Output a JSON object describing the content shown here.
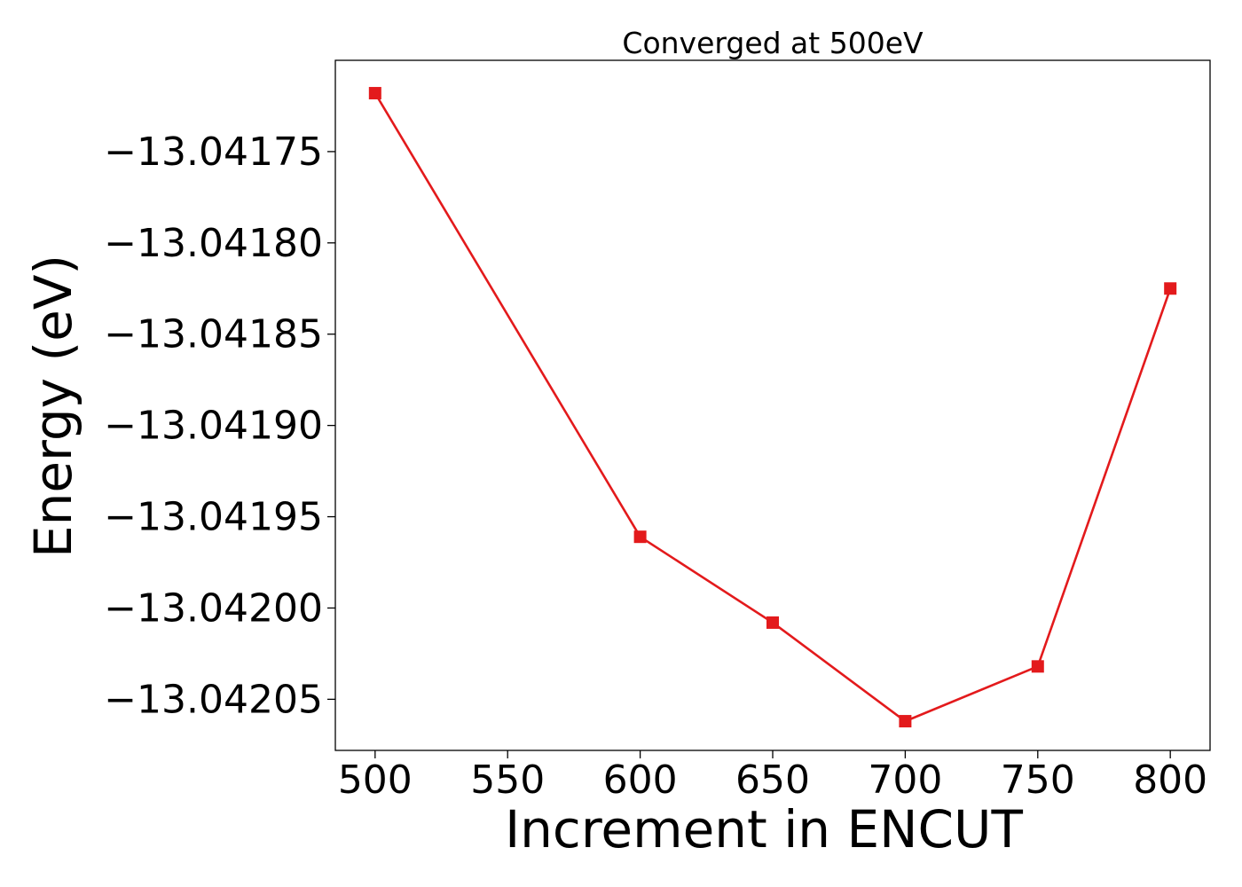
{
  "chart_data": {
    "type": "line",
    "title": "Converged at 500eV",
    "xlabel": "Increment in ENCUT",
    "ylabel": "Energy (eV)",
    "x": [
      500,
      600,
      650,
      700,
      750,
      800
    ],
    "series": [
      {
        "values": [
          -13.041718,
          -13.041961,
          -13.042008,
          -13.042062,
          -13.042032,
          -13.041825
        ],
        "color": "#e31a1c",
        "marker": "square"
      }
    ],
    "xlim": [
      485,
      815
    ],
    "ylim": [
      -13.042078,
      -13.0417
    ],
    "xticks": [
      500,
      550,
      600,
      650,
      700,
      750,
      800
    ],
    "xtick_labels": [
      "500",
      "550",
      "600",
      "650",
      "700",
      "750",
      "800"
    ],
    "yticks": [
      -13.04175,
      -13.0418,
      -13.04185,
      -13.0419,
      -13.04195,
      -13.042,
      -13.04205
    ],
    "ytick_labels": [
      "−13.04175",
      "−13.04180",
      "−13.04185",
      "−13.04190",
      "−13.04195",
      "−13.04200",
      "−13.04205"
    ],
    "grid": false,
    "legend": "none"
  }
}
